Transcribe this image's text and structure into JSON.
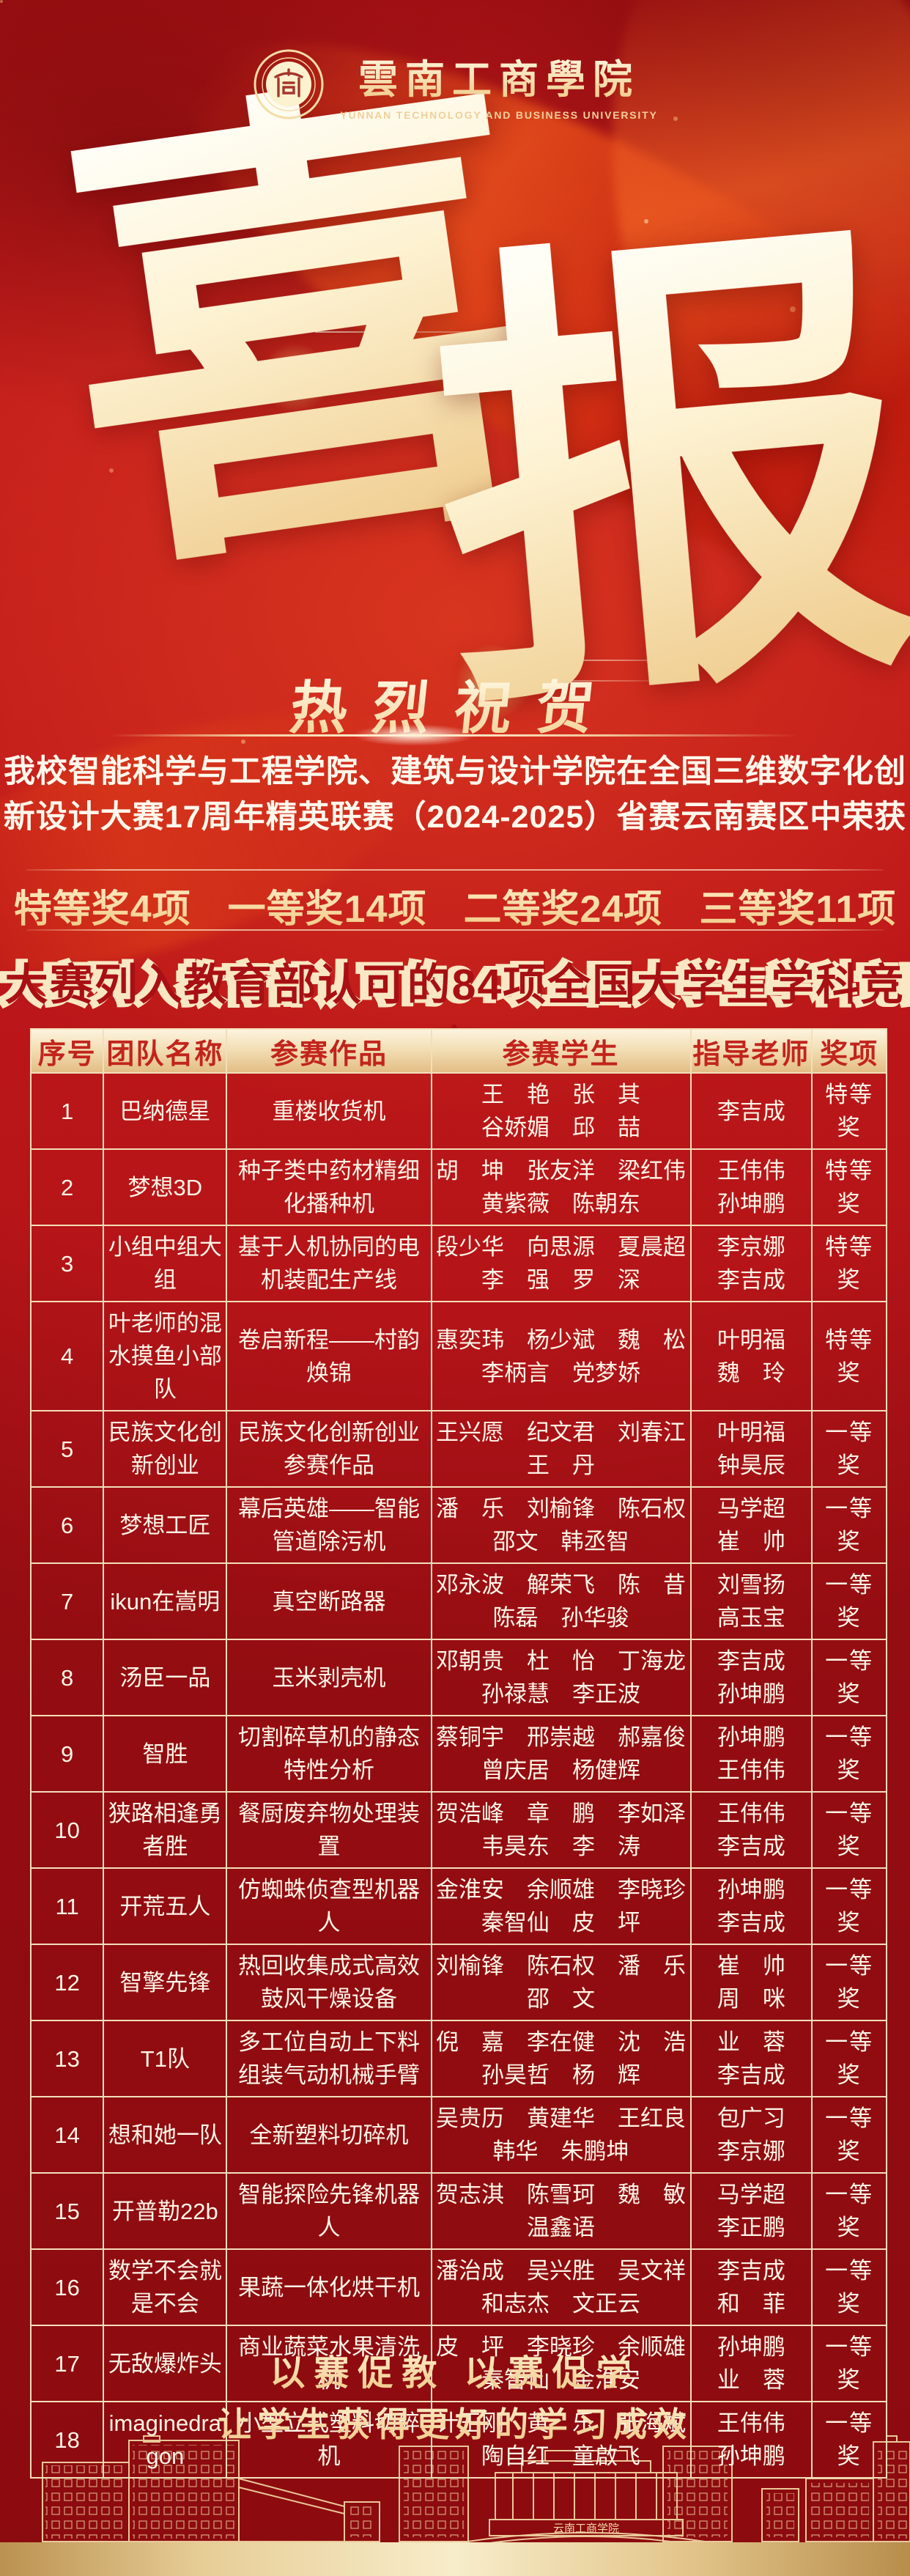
{
  "header": {
    "university_name": "雲南工商學院",
    "university_name_en": "YUNNAN TECHNOLOGY AND BUSINESS UNIVERSITY"
  },
  "hero": {
    "char1": "喜",
    "char2": "报"
  },
  "congrats": "热烈祝贺",
  "intro": {
    "line1": "我校智能科学与工程学院、建筑与设计学院在全国三维数字化创",
    "line2": "新设计大赛17周年精英联赛（2024-2025）省赛云南赛区中荣获"
  },
  "awards_summary": [
    "特等奖4项",
    "一等奖14项",
    "二等奖24项",
    "三等奖11项"
  ],
  "banner": "大赛列入教育部认可的84项全国大学生学科竞赛",
  "table": {
    "headers": [
      "序号",
      "团队名称",
      "参赛作品",
      "参赛学生",
      "指导老师",
      "奖项"
    ],
    "rows": [
      {
        "no": "1",
        "team": "巴纳德星",
        "work": "重楼收货机",
        "students": [
          "王　艳　张　其",
          "谷娇媚　邱　喆"
        ],
        "teachers": [
          "李吉成"
        ],
        "award": "特等奖"
      },
      {
        "no": "2",
        "team": "梦想3D",
        "work": "种子类中药材精细化播种机",
        "students": [
          "胡　坤　张友洋　梁红伟",
          "黄紫薇　陈朝东"
        ],
        "teachers": [
          "王伟伟",
          "孙坤鹏"
        ],
        "award": "特等奖"
      },
      {
        "no": "3",
        "team": "小组中组大组",
        "work": "基于人机协同的电机装配生产线",
        "students": [
          "段少华　向思源　夏晨超",
          "李　强　罗　深"
        ],
        "teachers": [
          "李京娜",
          "李吉成"
        ],
        "award": "特等奖"
      },
      {
        "no": "4",
        "team": "叶老师的混水摸鱼小部队",
        "work": "卷启新程——村韵焕锦",
        "students": [
          "惠奕玮　杨少斌　魏　松",
          "李柄言　党梦娇"
        ],
        "teachers": [
          "叶明福",
          "魏　玲"
        ],
        "award": "特等奖"
      },
      {
        "no": "5",
        "team": "民族文化创新创业",
        "work": "民族文化创新创业参赛作品",
        "students": [
          "王兴愿　纪文君　刘春江",
          "王　丹"
        ],
        "teachers": [
          "叶明福",
          "钟昊辰"
        ],
        "award": "一等奖"
      },
      {
        "no": "6",
        "team": "梦想工匠",
        "work": "幕后英雄——智能管道除污机",
        "students": [
          "潘　乐　刘榆锋　陈石权",
          "邵文　韩丞智"
        ],
        "teachers": [
          "马学超",
          "崔　帅"
        ],
        "award": "一等奖"
      },
      {
        "no": "7",
        "team": "ikun在嵩明",
        "work": "真空断路器",
        "students": [
          "邓永波　解荣飞　陈　昔",
          "陈磊　孙华骏"
        ],
        "teachers": [
          "刘雪扬",
          "高玉宝"
        ],
        "award": "一等奖"
      },
      {
        "no": "8",
        "team": "汤臣一品",
        "work": "玉米剥壳机",
        "students": [
          "邓朝贵　杜　怡　丁海龙",
          "孙禄慧　李正波"
        ],
        "teachers": [
          "李吉成",
          "孙坤鹏"
        ],
        "award": "一等奖"
      },
      {
        "no": "9",
        "team": "智胜",
        "work": "切割碎草机的静态特性分析",
        "students": [
          "蔡铜宇　邢崇越　郝嘉俊",
          "曾庆居　杨健辉"
        ],
        "teachers": [
          "孙坤鹏",
          "王伟伟"
        ],
        "award": "一等奖"
      },
      {
        "no": "10",
        "team": "狭路相逢勇者胜",
        "work": "餐厨废弃物处理装置",
        "students": [
          "贺浩峰　章　鹏　李如泽",
          "韦昊东　李　涛"
        ],
        "teachers": [
          "王伟伟",
          "李吉成"
        ],
        "award": "一等奖"
      },
      {
        "no": "11",
        "team": "开荒五人",
        "work": "仿蜘蛛侦查型机器人",
        "students": [
          "金淮安　余顺雄　李晓珍",
          "秦智仙　皮　坪"
        ],
        "teachers": [
          "孙坤鹏",
          "李吉成"
        ],
        "award": "一等奖"
      },
      {
        "no": "12",
        "team": "智擎先锋",
        "work": "热回收集成式高效鼓风干燥设备",
        "students": [
          "刘榆锋　陈石权　潘　乐",
          "邵　文"
        ],
        "teachers": [
          "崔　帅",
          "周　咪"
        ],
        "award": "一等奖"
      },
      {
        "no": "13",
        "team": "T1队",
        "work": "多工位自动上下料组装气动机械手臂",
        "students": [
          "倪　嘉　李在健　沈　浩",
          "孙昊哲　杨　辉"
        ],
        "teachers": [
          "业　蓉",
          "李吉成"
        ],
        "award": "一等奖"
      },
      {
        "no": "14",
        "team": "想和她一队",
        "work": "全新塑料切碎机",
        "students": [
          "吴贵历　黄建华　王红良",
          "韩华　朱鹏坤"
        ],
        "teachers": [
          "包广习",
          "李京娜"
        ],
        "award": "一等奖"
      },
      {
        "no": "15",
        "team": "开普勒22b",
        "work": "智能探险先锋机器人",
        "students": [
          "贺志淇　陈雪珂　魏　敏",
          "温鑫语"
        ],
        "teachers": [
          "马学超",
          "李正鹏"
        ],
        "award": "一等奖"
      },
      {
        "no": "16",
        "team": "数学不会就是不会",
        "work": "果蔬一体化烘干机",
        "students": [
          "潘治成　吴兴胜　吴文祥",
          "和志杰　文正云"
        ],
        "teachers": [
          "李吉成",
          "和　菲"
        ],
        "award": "一等奖"
      },
      {
        "no": "17",
        "team": "无敌爆炸头",
        "work": "商业蔬菜水果清洗机",
        "students": [
          "皮　坪　李晓珍　余顺雄",
          "秦智仙　金淮安"
        ],
        "teachers": [
          "孙坤鹏",
          "业　蓉"
        ],
        "award": "一等奖"
      },
      {
        "no": "18",
        "team": "imaginedragon",
        "work": "小型立式塑料切碎机",
        "students": [
          "计王刚　黄　乐　张海斌",
          "陶自红　童啟飞"
        ],
        "teachers": [
          "王伟伟",
          "孙坤鹏"
        ],
        "award": "一等奖"
      }
    ]
  },
  "footer": {
    "slogan1": "以赛促教  以赛促学",
    "slogan2": "让学生获得更好的学习成效",
    "gate_sign": "云南工商学院"
  }
}
